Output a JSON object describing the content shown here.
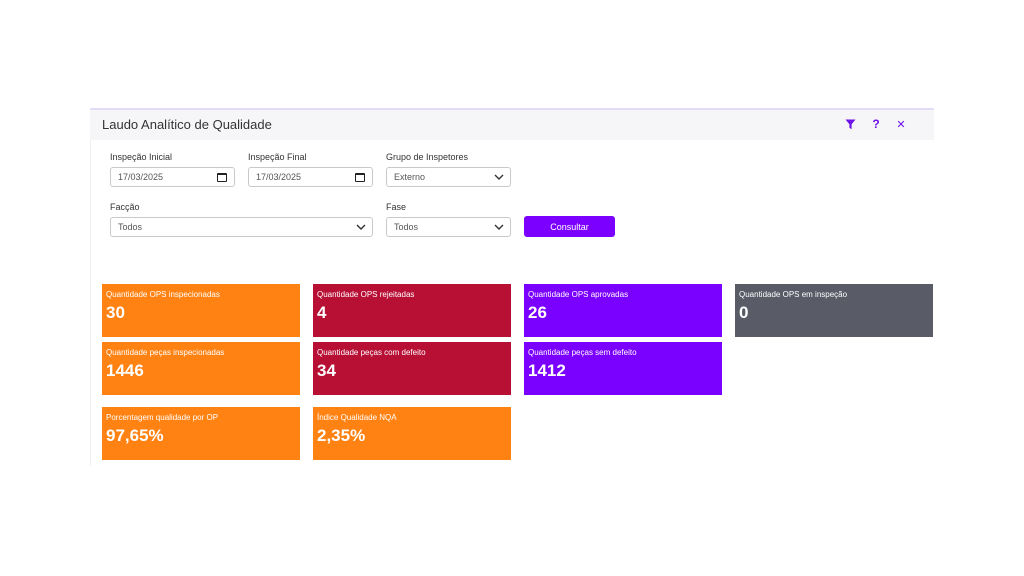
{
  "window": {
    "title": "Laudo Analítico de Qualidade",
    "icons": [
      "filter-icon",
      "help-icon",
      "close-icon"
    ],
    "help_glyph": "?",
    "close_glyph": "✕"
  },
  "form": {
    "inspecao_inicial": {
      "label": "Inspeção Inicial",
      "value": "17/03/2025"
    },
    "inspecao_final": {
      "label": "Inspeção Final",
      "value": "17/03/2025"
    },
    "grupo_inspetores": {
      "label": "Grupo de Inspetores",
      "value": "Externo"
    },
    "faccao": {
      "label": "Facção",
      "value": "Todos"
    },
    "fase": {
      "label": "Fase",
      "value": "Todos"
    },
    "consultar_label": "Consultar"
  },
  "cards": [
    {
      "label": "Quantidade OPS inspecionadas",
      "value": "30",
      "color": "#ff8213"
    },
    {
      "label": "Quantidade OPS rejeitadas",
      "value": "4",
      "color": "#b80f35"
    },
    {
      "label": "Quantidade OPS aprovadas",
      "value": "26",
      "color": "#7a00ff"
    },
    {
      "label": "Quantidade OPS em inspeção",
      "value": "0",
      "color": "#595c67"
    },
    {
      "label": "Quantidade peças inspecionadas",
      "value": "1446",
      "color": "#ff8213"
    },
    {
      "label": "Quantidade peças com defeito",
      "value": "34",
      "color": "#b80f35"
    },
    {
      "label": "Quantidade peças sem defeito",
      "value": "1412",
      "color": "#7a00ff"
    },
    {
      "label": "Porcentagem qualidade por OP",
      "value": "97,65%",
      "color": "#ff8213"
    },
    {
      "label": "Índice Qualidade NQA",
      "value": "2,35%",
      "color": "#ff8213"
    }
  ],
  "colors": {
    "accent": "#7b00ff",
    "header_bg": "#f6f6f8"
  }
}
